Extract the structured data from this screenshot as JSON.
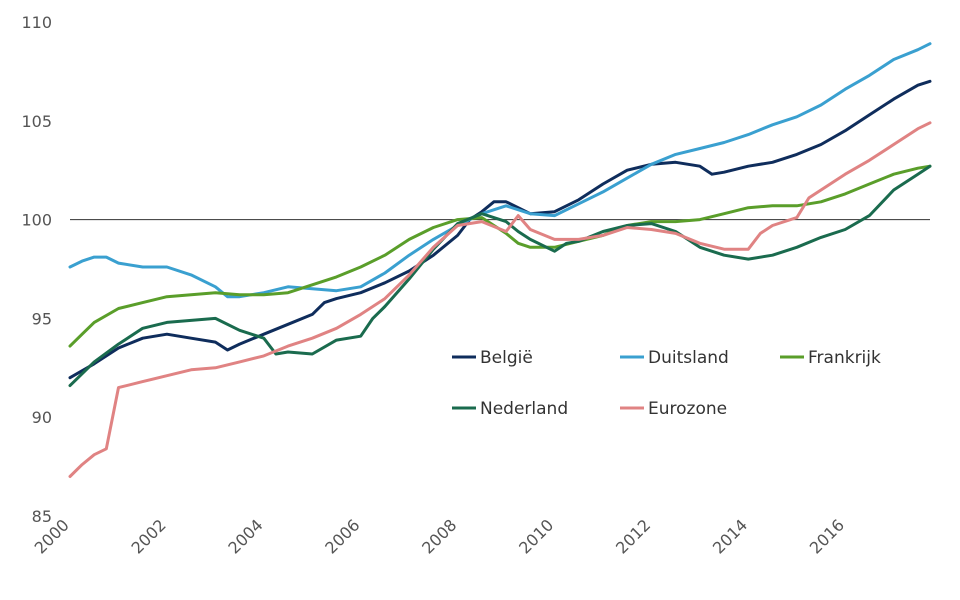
{
  "chart_data": {
    "type": "line",
    "title": "",
    "xlabel": "",
    "ylabel": "",
    "xlim": [
      2000,
      2017.75
    ],
    "ylim": [
      85,
      110
    ],
    "y_ticks": [
      85,
      90,
      95,
      100,
      105,
      110
    ],
    "y_tick_labels": [
      "85",
      "90",
      "95",
      "100",
      "105",
      "110"
    ],
    "x_ticks": [
      2000,
      2002,
      2004,
      2006,
      2008,
      2010,
      2012,
      2014,
      2016
    ],
    "x_tick_labels": [
      "2000",
      "2002",
      "2004",
      "2006",
      "2008",
      "2010",
      "2012",
      "2014",
      "2016"
    ],
    "reference_line": 100,
    "grid": false,
    "legend_position": "lower-right inside",
    "series": [
      {
        "name": "België",
        "color": "#0f2d5c",
        "points": [
          [
            2000,
            92.0
          ],
          [
            2000.5,
            92.7
          ],
          [
            2001,
            93.5
          ],
          [
            2001.5,
            94.0
          ],
          [
            2002,
            94.2
          ],
          [
            2002.5,
            94.0
          ],
          [
            2003,
            93.8
          ],
          [
            2003.25,
            93.4
          ],
          [
            2003.5,
            93.7
          ],
          [
            2004,
            94.2
          ],
          [
            2004.5,
            94.7
          ],
          [
            2005,
            95.2
          ],
          [
            2005.25,
            95.8
          ],
          [
            2005.5,
            96.0
          ],
          [
            2006,
            96.3
          ],
          [
            2006.5,
            96.8
          ],
          [
            2007,
            97.4
          ],
          [
            2007.5,
            98.2
          ],
          [
            2008,
            99.2
          ],
          [
            2008.25,
            100.0
          ],
          [
            2008.5,
            100.4
          ],
          [
            2008.75,
            100.9
          ],
          [
            2009,
            100.9
          ],
          [
            2009.25,
            100.6
          ],
          [
            2009.5,
            100.3
          ],
          [
            2010,
            100.4
          ],
          [
            2010.5,
            101.0
          ],
          [
            2011,
            101.8
          ],
          [
            2011.5,
            102.5
          ],
          [
            2012,
            102.8
          ],
          [
            2012.5,
            102.9
          ],
          [
            2013,
            102.7
          ],
          [
            2013.25,
            102.3
          ],
          [
            2013.5,
            102.4
          ],
          [
            2014,
            102.7
          ],
          [
            2014.5,
            102.9
          ],
          [
            2015,
            103.3
          ],
          [
            2015.5,
            103.8
          ],
          [
            2016,
            104.5
          ],
          [
            2016.5,
            105.3
          ],
          [
            2017,
            106.1
          ],
          [
            2017.5,
            106.8
          ],
          [
            2017.75,
            107.0
          ]
        ]
      },
      {
        "name": "Duitsland",
        "color": "#3aa0d0",
        "points": [
          [
            2000,
            97.6
          ],
          [
            2000.25,
            97.9
          ],
          [
            2000.5,
            98.1
          ],
          [
            2000.75,
            98.1
          ],
          [
            2001,
            97.8
          ],
          [
            2001.5,
            97.6
          ],
          [
            2002,
            97.6
          ],
          [
            2002.5,
            97.2
          ],
          [
            2003,
            96.6
          ],
          [
            2003.25,
            96.1
          ],
          [
            2003.5,
            96.1
          ],
          [
            2004,
            96.3
          ],
          [
            2004.5,
            96.6
          ],
          [
            2005,
            96.5
          ],
          [
            2005.5,
            96.4
          ],
          [
            2006,
            96.6
          ],
          [
            2006.5,
            97.3
          ],
          [
            2007,
            98.2
          ],
          [
            2007.5,
            99.0
          ],
          [
            2008,
            99.7
          ],
          [
            2008.5,
            100.3
          ],
          [
            2009,
            100.7
          ],
          [
            2009.5,
            100.3
          ],
          [
            2010,
            100.2
          ],
          [
            2010.5,
            100.8
          ],
          [
            2011,
            101.4
          ],
          [
            2011.5,
            102.1
          ],
          [
            2012,
            102.8
          ],
          [
            2012.5,
            103.3
          ],
          [
            2013,
            103.6
          ],
          [
            2013.5,
            103.9
          ],
          [
            2014,
            104.3
          ],
          [
            2014.5,
            104.8
          ],
          [
            2015,
            105.2
          ],
          [
            2015.5,
            105.8
          ],
          [
            2016,
            106.6
          ],
          [
            2016.5,
            107.3
          ],
          [
            2017,
            108.1
          ],
          [
            2017.5,
            108.6
          ],
          [
            2017.75,
            108.9
          ]
        ]
      },
      {
        "name": "Frankrijk",
        "color": "#5a9e2a",
        "points": [
          [
            2000,
            93.6
          ],
          [
            2000.25,
            94.2
          ],
          [
            2000.5,
            94.8
          ],
          [
            2001,
            95.5
          ],
          [
            2001.5,
            95.8
          ],
          [
            2002,
            96.1
          ],
          [
            2002.5,
            96.2
          ],
          [
            2003,
            96.3
          ],
          [
            2003.5,
            96.2
          ],
          [
            2004,
            96.2
          ],
          [
            2004.5,
            96.3
          ],
          [
            2005,
            96.7
          ],
          [
            2005.5,
            97.1
          ],
          [
            2006,
            97.6
          ],
          [
            2006.5,
            98.2
          ],
          [
            2007,
            99.0
          ],
          [
            2007.5,
            99.6
          ],
          [
            2008,
            100.0
          ],
          [
            2008.5,
            100.1
          ],
          [
            2009,
            99.3
          ],
          [
            2009.25,
            98.8
          ],
          [
            2009.5,
            98.6
          ],
          [
            2010,
            98.6
          ],
          [
            2010.5,
            98.9
          ],
          [
            2011,
            99.2
          ],
          [
            2011.5,
            99.7
          ],
          [
            2012,
            99.9
          ],
          [
            2012.5,
            99.9
          ],
          [
            2013,
            100.0
          ],
          [
            2013.5,
            100.3
          ],
          [
            2014,
            100.6
          ],
          [
            2014.5,
            100.7
          ],
          [
            2015,
            100.7
          ],
          [
            2015.5,
            100.9
          ],
          [
            2016,
            101.3
          ],
          [
            2016.5,
            101.8
          ],
          [
            2017,
            102.3
          ],
          [
            2017.5,
            102.6
          ],
          [
            2017.75,
            102.7
          ]
        ]
      },
      {
        "name": "Nederland",
        "color": "#1a6b4e",
        "points": [
          [
            2000,
            91.6
          ],
          [
            2000.5,
            92.8
          ],
          [
            2001,
            93.7
          ],
          [
            2001.5,
            94.5
          ],
          [
            2002,
            94.8
          ],
          [
            2002.5,
            94.9
          ],
          [
            2003,
            95.0
          ],
          [
            2003.5,
            94.4
          ],
          [
            2004,
            94.0
          ],
          [
            2004.25,
            93.2
          ],
          [
            2004.5,
            93.3
          ],
          [
            2005,
            93.2
          ],
          [
            2005.5,
            93.9
          ],
          [
            2006,
            94.1
          ],
          [
            2006.25,
            95.0
          ],
          [
            2006.5,
            95.6
          ],
          [
            2007,
            97.0
          ],
          [
            2007.5,
            98.5
          ],
          [
            2008,
            99.8
          ],
          [
            2008.5,
            100.3
          ],
          [
            2009,
            99.9
          ],
          [
            2009.25,
            99.4
          ],
          [
            2009.5,
            99.0
          ],
          [
            2010,
            98.4
          ],
          [
            2010.25,
            98.8
          ],
          [
            2010.5,
            98.9
          ],
          [
            2011,
            99.4
          ],
          [
            2011.5,
            99.7
          ],
          [
            2012,
            99.8
          ],
          [
            2012.5,
            99.4
          ],
          [
            2013,
            98.6
          ],
          [
            2013.5,
            98.2
          ],
          [
            2014,
            98.0
          ],
          [
            2014.5,
            98.2
          ],
          [
            2015,
            98.6
          ],
          [
            2015.5,
            99.1
          ],
          [
            2016,
            99.5
          ],
          [
            2016.5,
            100.2
          ],
          [
            2017,
            101.5
          ],
          [
            2017.5,
            102.3
          ],
          [
            2017.75,
            102.7
          ]
        ]
      },
      {
        "name": "Eurozone",
        "color": "#e08383",
        "points": [
          [
            2000,
            87.0
          ],
          [
            2000.25,
            87.6
          ],
          [
            2000.5,
            88.1
          ],
          [
            2000.75,
            88.4
          ],
          [
            2001,
            91.5
          ],
          [
            2001.5,
            91.8
          ],
          [
            2002,
            92.1
          ],
          [
            2002.5,
            92.4
          ],
          [
            2003,
            92.5
          ],
          [
            2003.5,
            92.8
          ],
          [
            2004,
            93.1
          ],
          [
            2004.5,
            93.6
          ],
          [
            2005,
            94.0
          ],
          [
            2005.5,
            94.5
          ],
          [
            2006,
            95.2
          ],
          [
            2006.5,
            96.0
          ],
          [
            2007,
            97.2
          ],
          [
            2007.5,
            98.6
          ],
          [
            2008,
            99.7
          ],
          [
            2008.5,
            99.9
          ],
          [
            2009,
            99.4
          ],
          [
            2009.25,
            100.2
          ],
          [
            2009.5,
            99.5
          ],
          [
            2010,
            99.0
          ],
          [
            2010.5,
            99.0
          ],
          [
            2011,
            99.2
          ],
          [
            2011.5,
            99.6
          ],
          [
            2012,
            99.5
          ],
          [
            2012.5,
            99.3
          ],
          [
            2013,
            98.8
          ],
          [
            2013.5,
            98.5
          ],
          [
            2014,
            98.5
          ],
          [
            2014.25,
            99.3
          ],
          [
            2014.5,
            99.7
          ],
          [
            2015,
            100.1
          ],
          [
            2015.25,
            101.1
          ],
          [
            2015.5,
            101.5
          ],
          [
            2016,
            102.3
          ],
          [
            2016.5,
            103.0
          ],
          [
            2017,
            103.8
          ],
          [
            2017.5,
            104.6
          ],
          [
            2017.75,
            104.9
          ]
        ]
      }
    ]
  }
}
